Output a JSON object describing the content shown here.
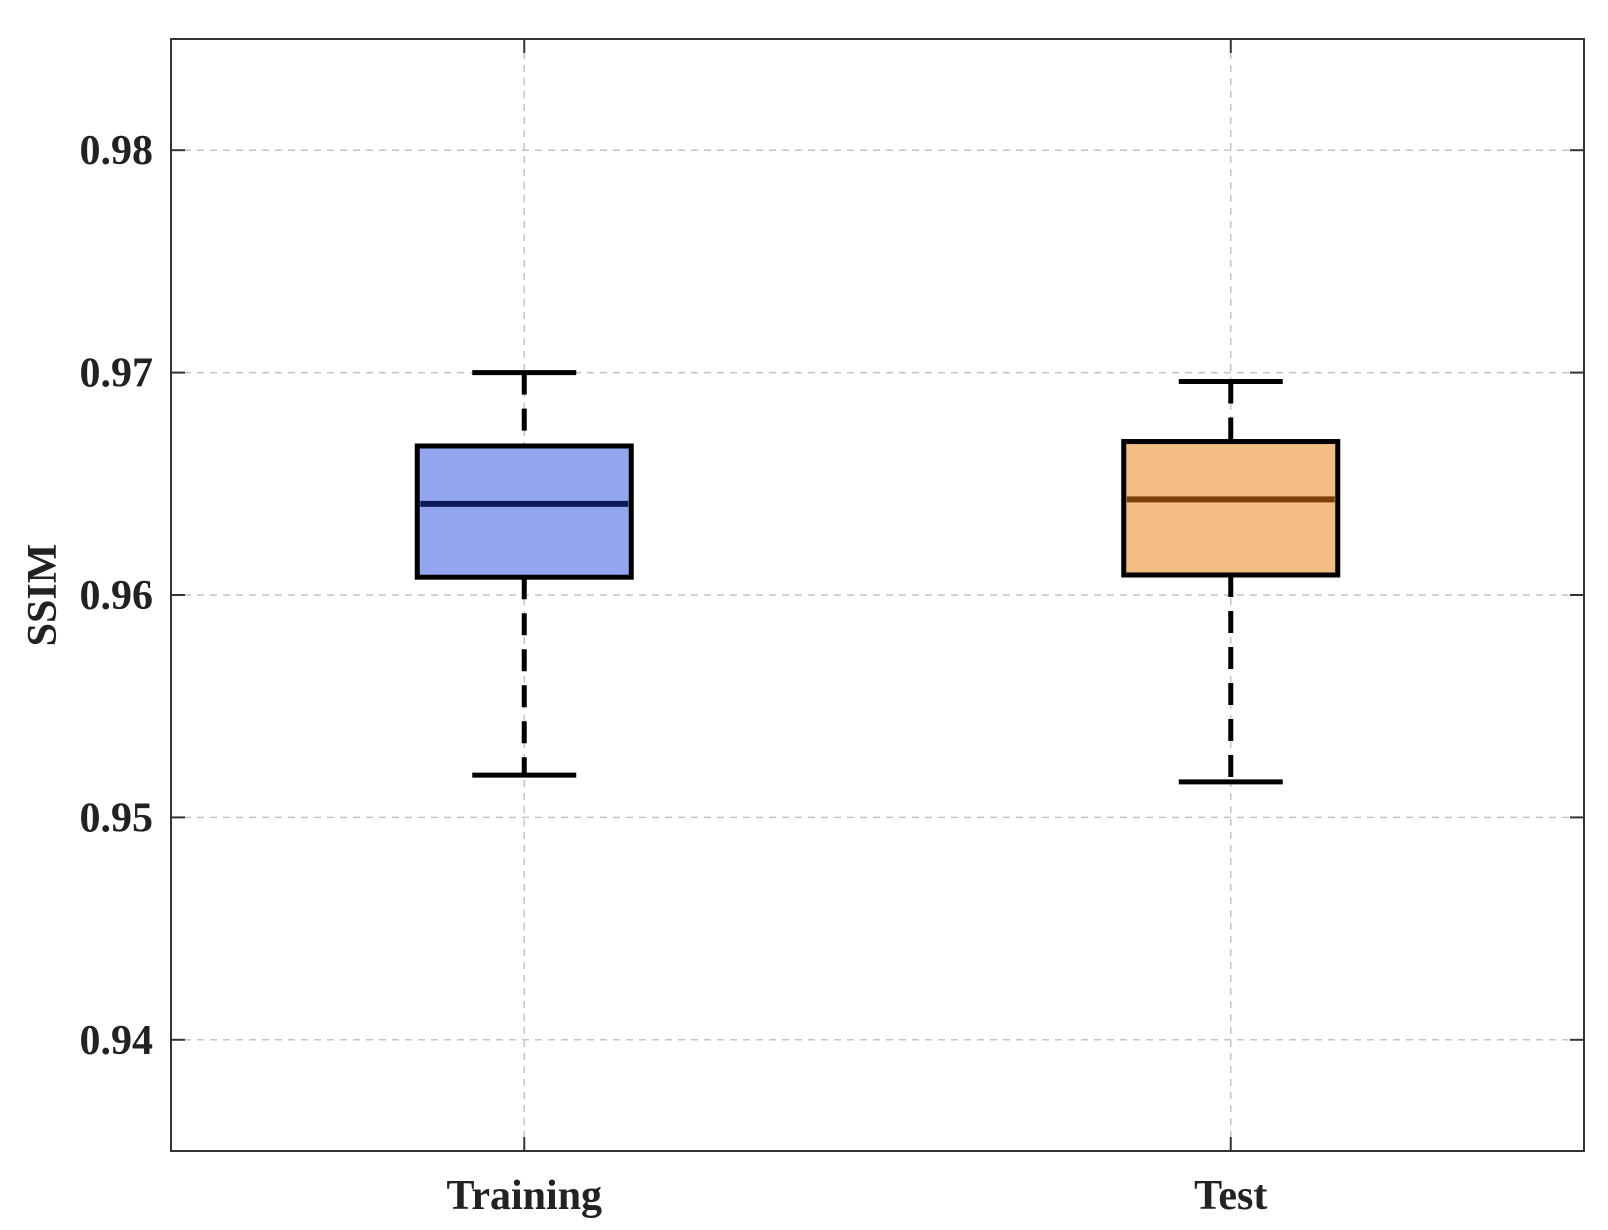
{
  "chart_data": {
    "type": "box",
    "title": "",
    "xlabel": "",
    "ylabel": "SSIM",
    "ylim": [
      0.935,
      0.985
    ],
    "yticks": [
      "0.94",
      "0.95",
      "0.96",
      "0.97",
      "0.98"
    ],
    "grid": true,
    "categories": [
      "Training",
      "Test"
    ],
    "boxes": [
      {
        "category": "Training",
        "whisker_low": 0.9519,
        "q1": 0.9608,
        "median": 0.9641,
        "q3": 0.9667,
        "whisker_high": 0.97,
        "fill": "#92a6f0",
        "edge": "#0d1a5a"
      },
      {
        "category": "Test",
        "whisker_low": 0.9516,
        "q1": 0.9609,
        "median": 0.9643,
        "q3": 0.9669,
        "whisker_high": 0.9696,
        "fill": "#f4bd84",
        "edge": "#7a3f0a"
      }
    ]
  }
}
